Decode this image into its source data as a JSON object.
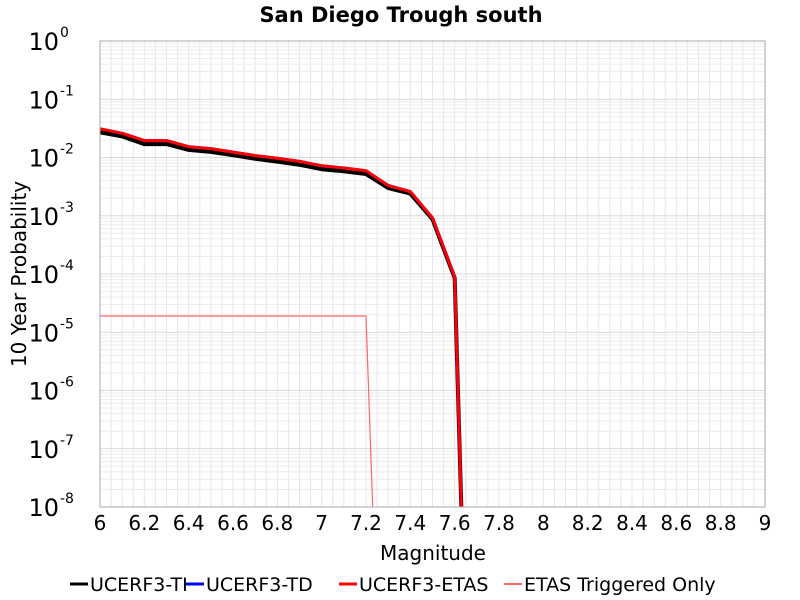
{
  "chart_data": {
    "type": "line",
    "title": "San Diego Trough south",
    "xlabel": "Magnitude",
    "ylabel": "10 Year Probability",
    "xlim": [
      6,
      9
    ],
    "ylim_log10": [
      -8,
      0
    ],
    "y_scale": "log",
    "x_ticks": [
      "6",
      "6.2",
      "6.4",
      "6.6",
      "6.8",
      "7",
      "7.2",
      "7.4",
      "7.6",
      "7.8",
      "8",
      "8.2",
      "8.4",
      "8.6",
      "8.8",
      "9"
    ],
    "y_ticks": [
      {
        "base": "10",
        "exp": "0",
        "log": 0
      },
      {
        "base": "10",
        "exp": "-1",
        "log": -1
      },
      {
        "base": "10",
        "exp": "-2",
        "log": -2
      },
      {
        "base": "10",
        "exp": "-3",
        "log": -3
      },
      {
        "base": "10",
        "exp": "-4",
        "log": -4
      },
      {
        "base": "10",
        "exp": "-5",
        "log": -5
      },
      {
        "base": "10",
        "exp": "-6",
        "log": -6
      },
      {
        "base": "10",
        "exp": "-7",
        "log": -7
      },
      {
        "base": "10",
        "exp": "-8",
        "log": -8
      }
    ],
    "grid": true,
    "legend_position": "bottom",
    "series": [
      {
        "name": "UCERF3-TI",
        "color": "#000000",
        "x": [
          6.0,
          6.1,
          6.2,
          6.3,
          6.4,
          6.5,
          6.6,
          6.7,
          6.8,
          6.9,
          7.0,
          7.1,
          7.2,
          7.3,
          7.4,
          7.5,
          7.6,
          7.63
        ],
        "y": [
          0.027,
          0.023,
          0.017,
          0.017,
          0.0135,
          0.0125,
          0.011,
          0.0095,
          0.0085,
          0.0075,
          0.0063,
          0.0058,
          0.0052,
          0.003,
          0.0024,
          0.00087,
          8.5e-05,
          1e-08
        ]
      },
      {
        "name": "UCERF3-TD",
        "color": "#0000ff",
        "x": [
          6.0,
          6.1,
          6.2,
          6.3,
          6.4,
          6.5,
          6.6,
          6.7,
          6.8,
          6.9,
          7.0,
          7.1,
          7.2,
          7.3,
          7.4,
          7.5,
          7.6,
          7.63
        ],
        "y": [
          0.031,
          0.026,
          0.0195,
          0.0195,
          0.0153,
          0.0142,
          0.0124,
          0.0108,
          0.0097,
          0.0086,
          0.0072,
          0.0066,
          0.0059,
          0.0033,
          0.0026,
          0.00092,
          8.8e-05,
          1e-08
        ]
      },
      {
        "name": "UCERF3-ETAS",
        "color": "#ff0000",
        "x": [
          6.0,
          6.1,
          6.2,
          6.3,
          6.4,
          6.5,
          6.6,
          6.7,
          6.8,
          6.9,
          7.0,
          7.1,
          7.2,
          7.3,
          7.4,
          7.5,
          7.6,
          7.63
        ],
        "y": [
          0.031,
          0.026,
          0.0195,
          0.0195,
          0.0153,
          0.0142,
          0.0124,
          0.0108,
          0.0097,
          0.0086,
          0.0072,
          0.0066,
          0.0059,
          0.0033,
          0.0026,
          0.00092,
          8.8e-05,
          1e-08
        ]
      },
      {
        "name": "ETAS Triggered Only",
        "color": "#ff6666",
        "x": [
          6.0,
          7.2,
          7.23
        ],
        "y": [
          1.9e-05,
          1.9e-05,
          1e-08
        ]
      }
    ]
  }
}
